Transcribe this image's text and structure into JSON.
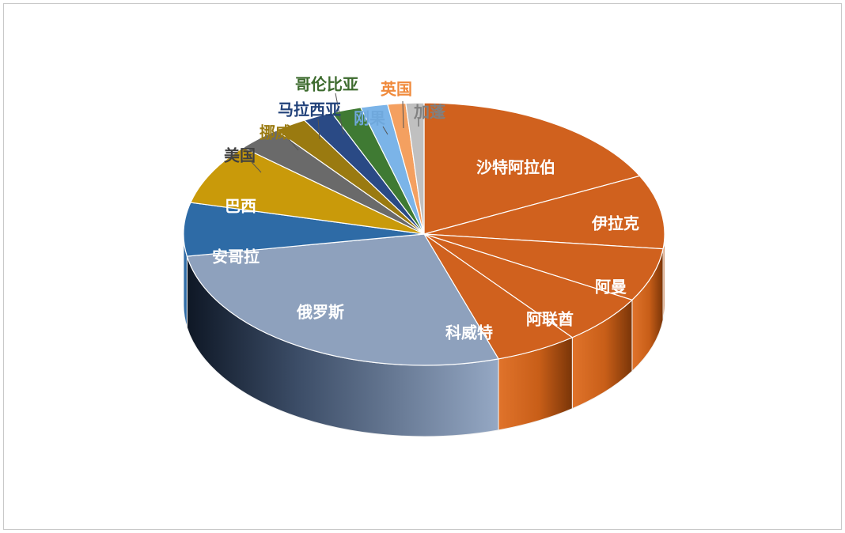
{
  "chart_data": {
    "type": "pie",
    "title": "",
    "slices": [
      {
        "label": "沙特阿拉伯",
        "value": 17.5,
        "color": "#D0611E",
        "label_color": "#ffffff"
      },
      {
        "label": "伊拉克",
        "value": 9.0,
        "color": "#D0611E",
        "label_color": "#ffffff"
      },
      {
        "label": "阿曼",
        "value": 6.5,
        "color": "#D0611E",
        "label_color": "#ffffff"
      },
      {
        "label": "阿联酋",
        "value": 6.0,
        "color": "#D0611E",
        "label_color": "#ffffff"
      },
      {
        "label": "科威特",
        "value": 5.5,
        "color": "#D0611E",
        "label_color": "#ffffff"
      },
      {
        "label": "俄罗斯",
        "value": 27.0,
        "color": "#8EA1BD",
        "label_color": "#ffffff"
      },
      {
        "label": "安哥拉",
        "value": 6.5,
        "color": "#2E6BA6",
        "label_color": "#ffffff"
      },
      {
        "label": "巴西",
        "value": 7.5,
        "color": "#C99A0A",
        "label_color": "#ffffff"
      },
      {
        "label": "美国",
        "value": 3.0,
        "color": "#6A6A6A",
        "label_color": "#404040"
      },
      {
        "label": "挪威",
        "value": 2.2,
        "color": "#9A7A10",
        "label_color": "#9A7A10"
      },
      {
        "label": "马拉西亚",
        "value": 2.0,
        "color": "#2A4A85",
        "label_color": "#22427A"
      },
      {
        "label": "哥伦比亚",
        "value": 2.0,
        "color": "#3F7A33",
        "label_color": "#3D6B2E"
      },
      {
        "label": "刚果",
        "value": 1.8,
        "color": "#7BB4E8",
        "label_color": "#6FA8DC"
      },
      {
        "label": "英国",
        "value": 1.2,
        "color": "#F4A060",
        "label_color": "#F08A3C"
      },
      {
        "label": "加蓬",
        "value": 1.2,
        "color": "#C0C0C0",
        "label_color": "#808080"
      }
    ]
  }
}
